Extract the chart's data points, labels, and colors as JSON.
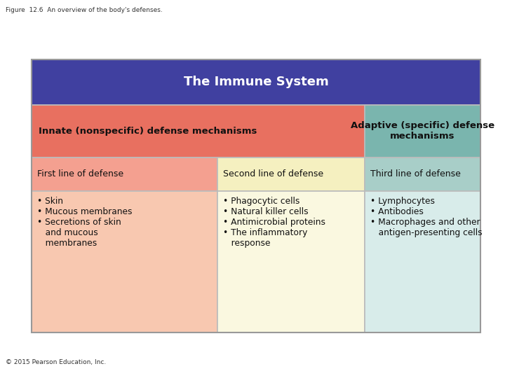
{
  "figure_label": "Figure  12.6  An overview of the body's defenses.",
  "copyright": "© 2015 Pearson Education, Inc.",
  "title": "The Immune System",
  "title_bg": "#4040a0",
  "title_color": "#ffffff",
  "innate_header_text": "Innate (nonspecific) defense mechanisms",
  "innate_header_bg": "#e87060",
  "adaptive_header_text": "Adaptive (specific) defense\nmechanisms",
  "adaptive_header_bg": "#7ab5ae",
  "row2_col1_text": "First line of defense",
  "row2_col1_bg": "#f4a090",
  "row2_col2_text": "Second line of defense",
  "row2_col2_bg": "#f5f0c0",
  "row2_col3_text": "Third line of defense",
  "row2_col3_bg": "#a8cec8",
  "row3_col1_bg": "#f8c8b0",
  "row3_col1_text": "• Skin\n• Mucous membranes\n• Secretions of skin\n   and mucous\n   membranes",
  "row3_col2_bg": "#faf8e0",
  "row3_col2_text": "• Phagocytic cells\n• Natural killer cells\n• Antimicrobial proteins\n• The inflammatory\n   response",
  "row3_col3_bg": "#d8ecea",
  "row3_col3_text": "• Lymphocytes\n• Antibodies\n• Macrophages and other\n   antigen-presenting cells",
  "border_color": "#bbbbbb",
  "bg_color": "#ffffff",
  "text_color": "#111111"
}
